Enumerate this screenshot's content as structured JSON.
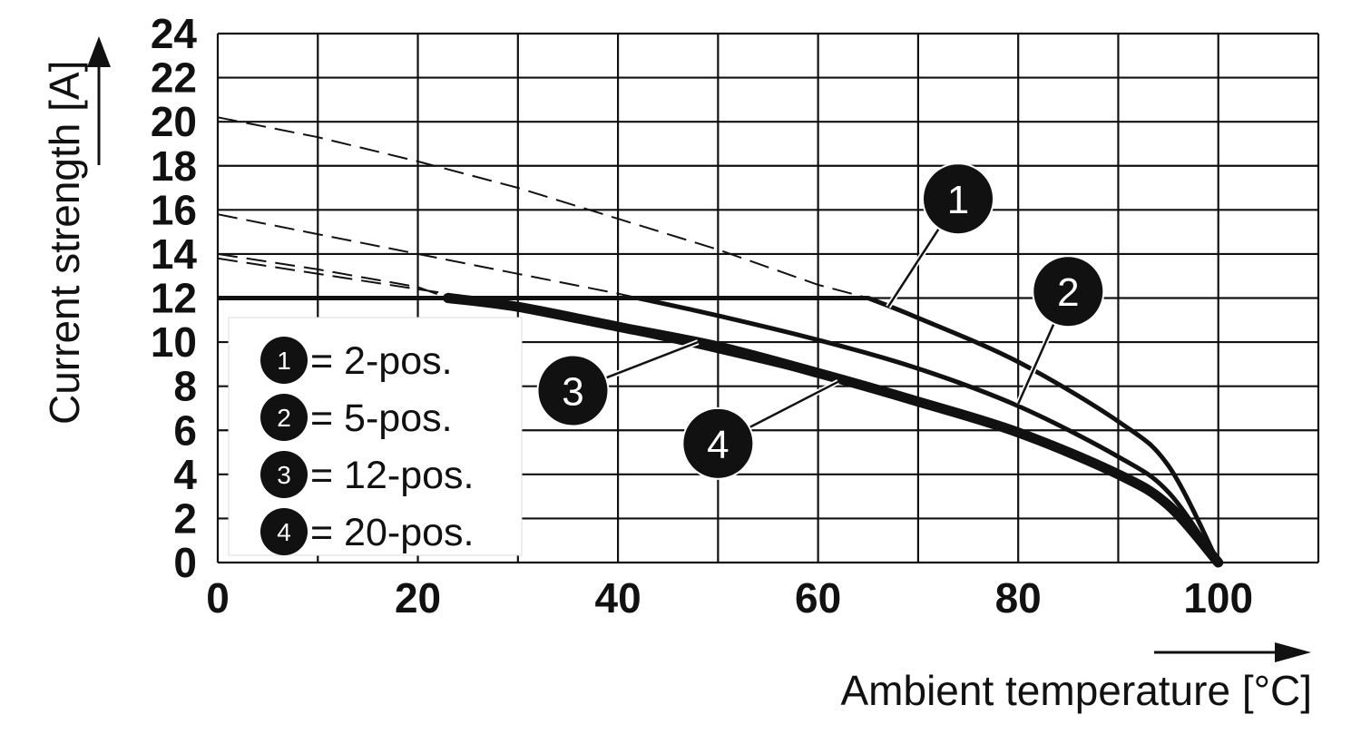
{
  "chart_data": {
    "type": "line",
    "xlabel": "Ambient temperature [°C]",
    "ylabel": "Current strength [A]",
    "xlim": [
      0,
      110
    ],
    "ylim": [
      0,
      24
    ],
    "x_ticks": [
      "0",
      "20",
      "40",
      "60",
      "80",
      "100"
    ],
    "y_ticks": [
      "0",
      "2",
      "4",
      "6",
      "8",
      "10",
      "12",
      "14",
      "16",
      "18",
      "20",
      "22",
      "24"
    ],
    "grid": true,
    "legend_position": "bottom-left",
    "legend": [
      {
        "marker": "1",
        "label": "= 2-pos."
      },
      {
        "marker": "2",
        "label": "= 5-pos."
      },
      {
        "marker": "3",
        "label": "= 12-pos."
      },
      {
        "marker": "4",
        "label": "= 20-pos."
      }
    ],
    "limit_line": {
      "y": 12
    },
    "series": [
      {
        "marker": "1",
        "x": [
          0,
          10,
          20,
          30,
          40,
          50,
          60,
          65,
          70,
          80,
          90,
          95,
          100
        ],
        "y": [
          20.2,
          19.3,
          18.2,
          17.0,
          15.6,
          14.2,
          12.6,
          12.0,
          11.1,
          9.1,
          6.4,
          4.4,
          0
        ]
      },
      {
        "marker": "2",
        "x": [
          0,
          10,
          20,
          30,
          40,
          42,
          50,
          60,
          70,
          80,
          90,
          95,
          100
        ],
        "y": [
          15.8,
          14.9,
          14.0,
          13.1,
          12.2,
          12.0,
          11.2,
          10.1,
          8.8,
          7.1,
          4.8,
          3.2,
          0
        ]
      },
      {
        "marker": "3",
        "x": [
          0,
          10,
          20,
          23,
          30,
          40,
          50,
          60,
          70,
          80,
          90,
          95,
          100
        ],
        "y": [
          14.0,
          13.3,
          12.5,
          12.0,
          11.6,
          10.7,
          9.8,
          8.6,
          7.3,
          5.9,
          4.0,
          2.6,
          0
        ]
      },
      {
        "marker": "4",
        "x": [
          0,
          10,
          20,
          26,
          30,
          40,
          50,
          60,
          70,
          80,
          90,
          95,
          100
        ],
        "y": [
          13.8,
          13.1,
          12.4,
          12.0,
          11.5,
          10.6,
          9.6,
          8.5,
          7.2,
          5.8,
          3.9,
          2.5,
          0
        ]
      }
    ],
    "callouts": [
      {
        "marker": "1",
        "at": [
          67,
          11.6
        ],
        "bubble": [
          74,
          16.5
        ]
      },
      {
        "marker": "2",
        "at": [
          80,
          7.2
        ],
        "bubble": [
          85,
          12.3
        ]
      },
      {
        "marker": "3",
        "at": [
          48,
          10.0
        ],
        "bubble": [
          35.5,
          7.8
        ]
      },
      {
        "marker": "4",
        "at": [
          62,
          8.2
        ],
        "bubble": [
          50,
          5.4
        ]
      }
    ]
  }
}
